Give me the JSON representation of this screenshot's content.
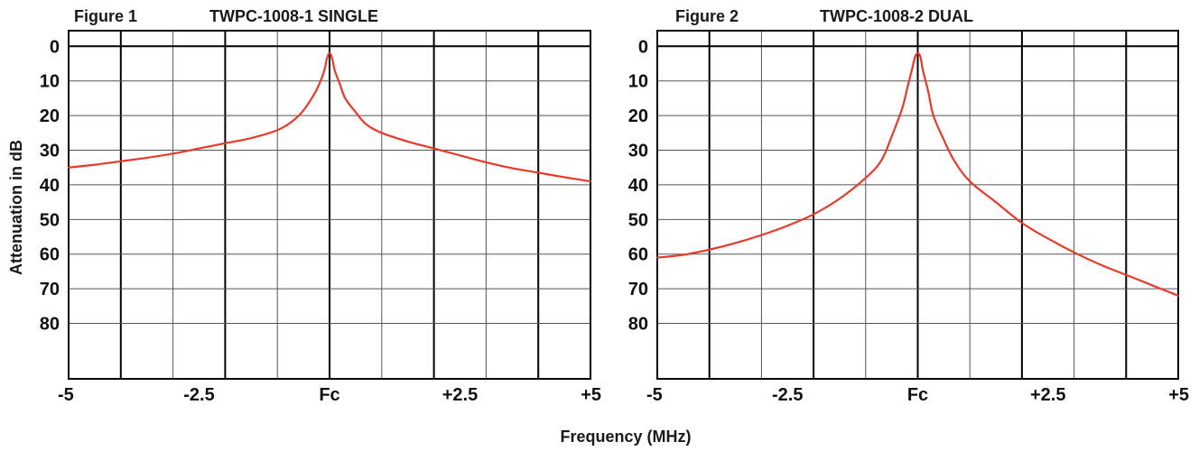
{
  "ylabel": "Attenuation in dB",
  "xlabel": "Frequency (MHz)",
  "colors": {
    "curve": "#e8392a",
    "grid": "#000000"
  },
  "chart_data": [
    {
      "type": "line",
      "figure_label": "Figure 1",
      "title": "TWPC-1008-1 SINGLE",
      "xlabel": "Frequency (MHz)",
      "ylabel": "Attenuation in dB",
      "xlim": [
        -5,
        5
      ],
      "ylim": [
        0,
        90
      ],
      "y_inverted": true,
      "x_ticks": [
        -5,
        -2.5,
        0,
        2.5,
        5
      ],
      "x_tick_labels": [
        "-5",
        "-2.5",
        "Fc",
        "+2.5",
        "+5"
      ],
      "y_ticks": [
        0,
        10,
        20,
        30,
        40,
        50,
        60,
        70,
        80
      ],
      "y_tick_labels": [
        "0",
        "10",
        "20",
        "30",
        "40",
        "50",
        "60",
        "70",
        "80"
      ],
      "grid": true,
      "series": [
        {
          "x": [
            -5,
            -4.5,
            -4,
            -3.5,
            -3,
            -2.5,
            -2,
            -1.5,
            -1,
            -0.7,
            -0.5,
            -0.3,
            -0.2,
            -0.1,
            -0.05,
            0,
            0.05,
            0.1,
            0.2,
            0.3,
            0.5,
            0.7,
            1,
            1.5,
            2,
            2.5,
            3,
            3.5,
            4,
            4.5,
            5
          ],
          "y": [
            35,
            34.2,
            33.2,
            32.2,
            31,
            29.5,
            28,
            26.5,
            24.2,
            21.5,
            18.5,
            14,
            11,
            7,
            3.5,
            2,
            3.5,
            7,
            11,
            15,
            19,
            22.5,
            25,
            27.5,
            29.5,
            31.5,
            33.5,
            35.2,
            36.5,
            37.8,
            39
          ]
        }
      ]
    },
    {
      "type": "line",
      "figure_label": "Figure 2",
      "title": "TWPC-1008-2 DUAL",
      "xlabel": "Frequency (MHz)",
      "ylabel": "Attenuation in dB",
      "xlim": [
        -5,
        5
      ],
      "ylim": [
        0,
        90
      ],
      "y_inverted": true,
      "x_ticks": [
        -5,
        -2.5,
        0,
        2.5,
        5
      ],
      "x_tick_labels": [
        "-5",
        "-2.5",
        "Fc",
        "+2.5",
        "+5"
      ],
      "y_ticks": [
        0,
        10,
        20,
        30,
        40,
        50,
        60,
        70,
        80
      ],
      "y_tick_labels": [
        "0",
        "10",
        "20",
        "30",
        "40",
        "50",
        "60",
        "70",
        "80"
      ],
      "grid": true,
      "series": [
        {
          "x": [
            -5,
            -4.5,
            -4,
            -3.5,
            -3,
            -2.5,
            -2,
            -1.5,
            -1,
            -0.7,
            -0.5,
            -0.3,
            -0.2,
            -0.1,
            -0.05,
            0,
            0.05,
            0.1,
            0.2,
            0.3,
            0.5,
            0.7,
            1,
            1.5,
            2,
            2.5,
            3,
            3.5,
            4,
            4.5,
            5
          ],
          "y": [
            61,
            60.2,
            58.7,
            56.8,
            54.5,
            51.8,
            48.5,
            44,
            38,
            33,
            26,
            18,
            12,
            6,
            3,
            2,
            3,
            7,
            13,
            20,
            27,
            33,
            39,
            45,
            51,
            55.5,
            59.5,
            63,
            66,
            69,
            72
          ]
        }
      ]
    }
  ]
}
